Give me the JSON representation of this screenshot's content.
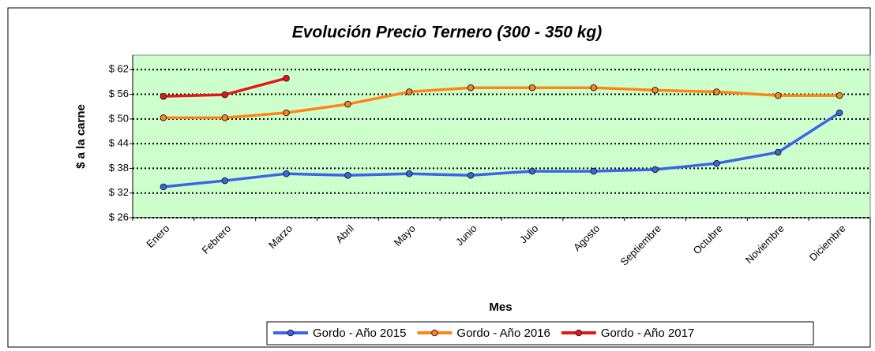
{
  "chart_data": {
    "type": "line",
    "title": "Evolución Precio Ternero (300 - 350 kg)",
    "x_label": "Mes",
    "y_label": "$ a la carne",
    "categories": [
      "Enero",
      "Febrero",
      "Marzo",
      "Abril",
      "Mayo",
      "Junio",
      "Julio",
      "Agosto",
      "Septiembre",
      "Octubre",
      "Noviembre",
      "Diciembre"
    ],
    "series": [
      {
        "name": "Gordo - Año 2015",
        "color": "#3d63e8",
        "values": [
          33.5,
          35.0,
          36.7,
          36.3,
          36.7,
          36.3,
          37.3,
          37.3,
          37.7,
          39.2,
          41.9,
          51.5
        ]
      },
      {
        "name": "Gordo - Año 2016",
        "color": "#ff8419",
        "values": [
          50.3,
          50.3,
          51.5,
          53.6,
          56.6,
          57.6,
          57.6,
          57.6,
          57.0,
          56.6,
          55.7,
          55.7
        ]
      },
      {
        "name": "Gordo - Año 2017",
        "color": "#e8141b",
        "values": [
          55.5,
          55.9,
          59.9,
          null,
          null,
          null,
          null,
          null,
          null,
          null,
          null,
          null
        ]
      }
    ],
    "ylim": [
      26,
      65.5
    ],
    "yticks": [
      {
        "value": 26,
        "label": "$ 26"
      },
      {
        "value": 32,
        "label": "$ 32"
      },
      {
        "value": 38,
        "label": "$ 38"
      },
      {
        "value": 44,
        "label": "$ 44"
      },
      {
        "value": 50,
        "label": "$ 50"
      },
      {
        "value": 56,
        "label": "$ 56"
      },
      {
        "value": 62,
        "label": "$ 62"
      }
    ],
    "grid": true,
    "plot_background": "#ccffcc",
    "legend": "bottom"
  }
}
